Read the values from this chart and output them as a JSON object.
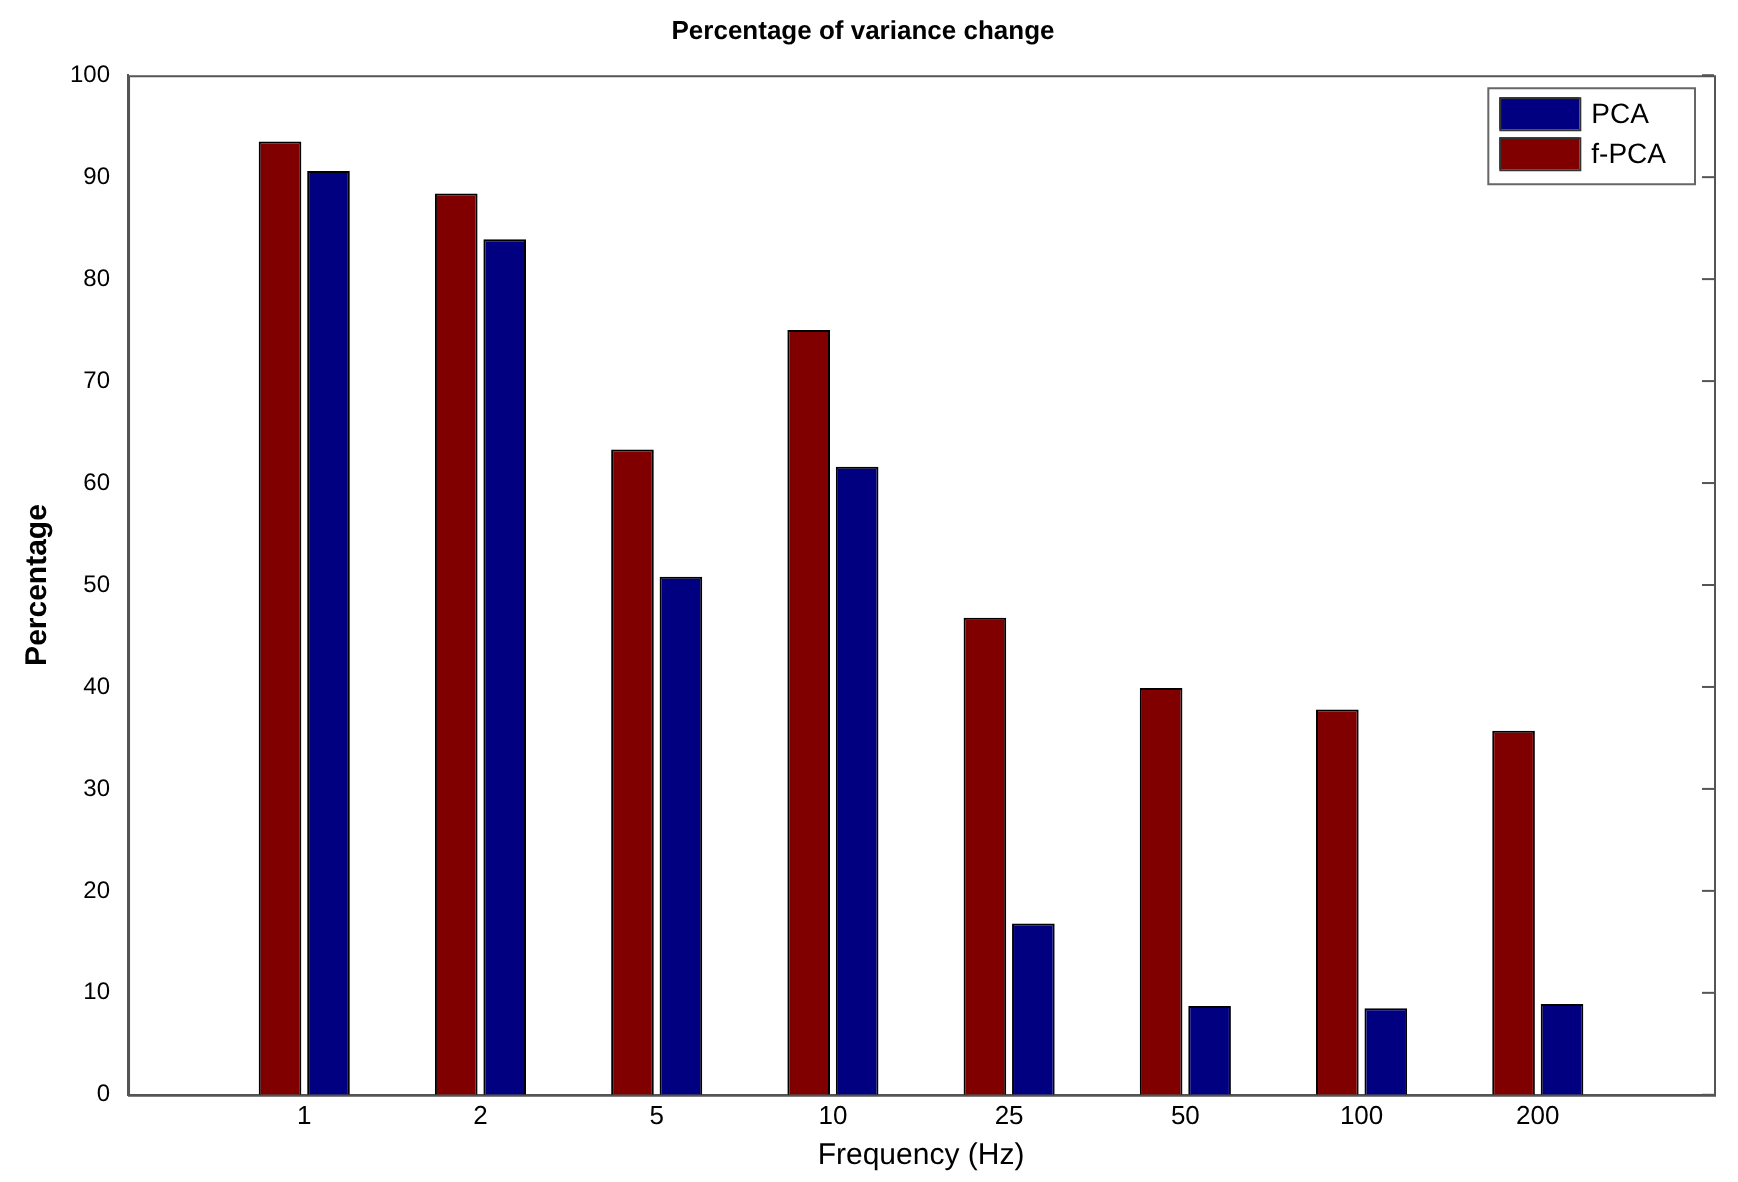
{
  "chart_data": {
    "type": "bar",
    "title": "Percentage of variance change",
    "xlabel": "Frequency (Hz)",
    "ylabel": "Percentage",
    "categories": [
      "1",
      "2",
      "5",
      "10",
      "25",
      "50",
      "100",
      "200"
    ],
    "series": [
      {
        "name": "PCA",
        "color": "#000080",
        "values": [
          90.6,
          83.9,
          50.8,
          61.6,
          16.8,
          8.7,
          8.5,
          8.9
        ]
      },
      {
        "name": "f-PCA",
        "color": "#800000",
        "values": [
          93.5,
          88.4,
          63.3,
          75.0,
          46.8,
          39.9,
          37.8,
          35.7
        ]
      }
    ],
    "ylim": [
      0,
      100
    ],
    "yticks": [
      0,
      10,
      20,
      30,
      40,
      50,
      60,
      70,
      80,
      90,
      100
    ],
    "grid": false,
    "legend": "top right"
  }
}
